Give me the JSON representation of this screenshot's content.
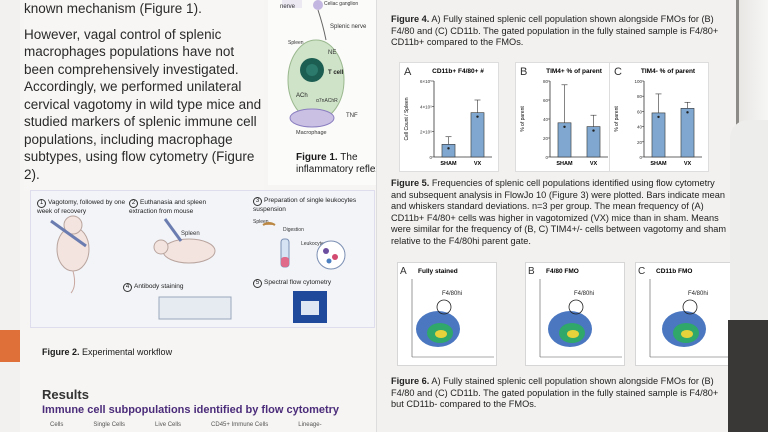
{
  "intro": {
    "line1": "known mechanism (Figure 1).",
    "para2": "However, vagal control of splenic macrophages populations have not been comprehensively investigated. Accordingly, we performed unilateral cervical vagotomy in wild type mice and studied markers of splenic immune cell populations, including macrophage subtypes, using flow cytometry (Figure 2)."
  },
  "figure1": {
    "labels": [
      "nerve",
      "Celiac ganglion",
      "Splenic nerve",
      "Spleen",
      "NE",
      "T cell",
      "ACh",
      "α7nAChR",
      "TNF",
      "Macrophage"
    ],
    "caption_bold": "Figure 1.",
    "caption_text": "The inflammatory reflex"
  },
  "figure2": {
    "steps": [
      {
        "num": "1",
        "text": "Vagotomy, followed by one week of recovery"
      },
      {
        "num": "2",
        "text": "Euthanasia and spleen extraction from mouse"
      },
      {
        "num": "3",
        "text": "Preparation of single leukocytes suspension"
      },
      {
        "num": "4",
        "text": "Antibody staining"
      },
      {
        "num": "5",
        "text": "Spectral flow cytometry"
      }
    ],
    "inner_labels": [
      "Spleen",
      "Spleen",
      "Digestion",
      "Leukocytes"
    ],
    "caption_bold": "Figure 2.",
    "caption_text": "Experimental workflow"
  },
  "results": {
    "heading": "Results",
    "subheading": "Immune cell subpopulations identified by flow cytometry",
    "gates": [
      "Cells",
      "Single Cells",
      "Live Cells",
      "CD45+ Immune Cells",
      "Lineage-"
    ]
  },
  "figure4_caption": {
    "bold": "Figure 4.",
    "text": "A) Fully stained splenic cell population shown alongside FMOs for (B) F4/80 and (C) CD11b. The gated population in the fully stained sample is F4/80+ CD11b+ compared to the FMOs."
  },
  "figure5_caption": {
    "bold": "Figure 5.",
    "text": "Frequencies of splenic cell populations identified using flow cytometry and subsequent analysis in FlowJo 10 (Figure 3) were plotted. Bars indicate mean and whiskers standard deviations. n=3 per group. The mean frequency of (A) CD11b+ F4/80+ cells was higher in vagotomized (VX) mice than in sham. Means were similar for the frequency of (B, C) TIM4+/- cells between vagotomy and sham relative to the F4/80hi parent gate."
  },
  "figure6_caption": {
    "bold": "Figure 6.",
    "text": "A) Fully stained splenic cell population shown alongside FMOs for (B) F4/80 and (C) CD11b. The gated population in the fully stained sample is F4/80+ but CD11b- compared to the FMOs."
  },
  "chart_data": [
    {
      "type": "bar",
      "letter": "A",
      "title": "CD11b+ F4/80+ #",
      "ylabel": "Cell Count / Spleen",
      "categories": [
        "SHAM",
        "VX"
      ],
      "values": [
        1.0,
        3.5
      ],
      "errors": [
        0.6,
        1.0
      ],
      "ylim": [
        0,
        6
      ],
      "yticks": [
        "0",
        "2×10⁵",
        "4×10⁵",
        "6×10⁵"
      ]
    },
    {
      "type": "bar",
      "letter": "B",
      "title": "TIM4+ % of parent",
      "ylabel": "% of parent",
      "categories": [
        "SHAM",
        "VX"
      ],
      "values": [
        36,
        32
      ],
      "errors": [
        40,
        12
      ],
      "ylim": [
        0,
        80
      ],
      "yticks": [
        "0",
        "20",
        "40",
        "60",
        "80"
      ]
    },
    {
      "type": "bar",
      "letter": "C",
      "title": "TIM4- % of parent",
      "ylabel": "% of parent",
      "categories": [
        "SHAM",
        "VX"
      ],
      "values": [
        58,
        64
      ],
      "errors": [
        25,
        8
      ],
      "ylim": [
        0,
        100
      ],
      "yticks": [
        "0",
        "20",
        "40",
        "60",
        "80",
        "100"
      ]
    }
  ],
  "figure6_panels": [
    {
      "letter": "A",
      "title": "Fully stained",
      "gate": "F4/80hi"
    },
    {
      "letter": "B",
      "title": "F4/80 FMO",
      "gate": "F4/80hi"
    },
    {
      "letter": "C",
      "title": "CD11b FMO",
      "gate": "F4/80hi"
    }
  ],
  "colors": {
    "bar": "#7fa7cf",
    "accent": "#4b2c7a",
    "orange": "#e0703a"
  }
}
